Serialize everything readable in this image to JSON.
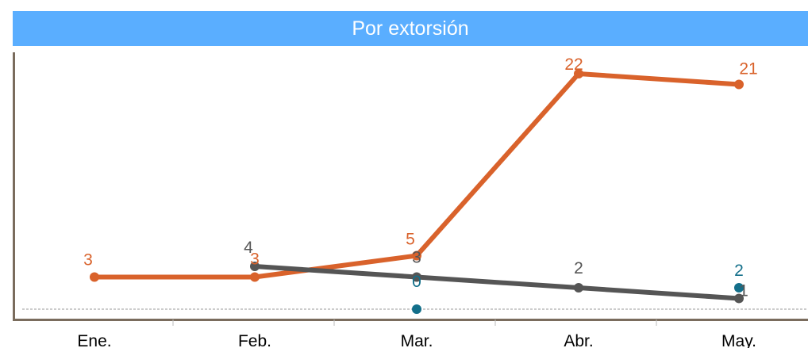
{
  "chart_data": {
    "type": "line",
    "title": "Por extorsión",
    "categories": [
      "Ene.",
      "Feb.",
      "Mar.",
      "Abr.",
      "May."
    ],
    "ylim": [
      0,
      24
    ],
    "grid": false,
    "series": [
      {
        "color": "#d9622b",
        "values": [
          3,
          3,
          5,
          22,
          21
        ]
      },
      {
        "color": "#555555",
        "values": [
          null,
          4,
          3,
          2,
          1
        ]
      },
      {
        "color": "#136f8a",
        "values": [
          null,
          null,
          0,
          null,
          2
        ],
        "lines": false
      }
    ]
  }
}
